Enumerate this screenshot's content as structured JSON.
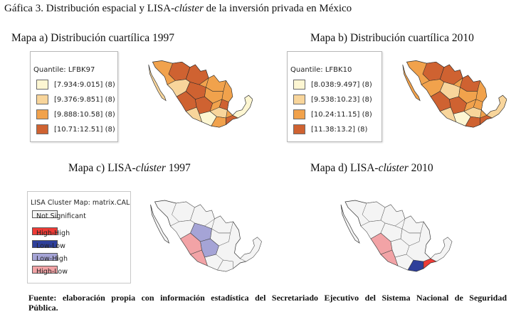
{
  "figure": {
    "title_prefix": "Gáfica 3. Distribución espacial y LISA-",
    "title_italic": "clúster",
    "title_suffix": " de la inversión privada en México"
  },
  "captions": {
    "a": "Mapa a) Distribución cuartílica 1997",
    "b": "Mapa b) Distribución cuartílica 2010",
    "c_prefix": "Mapa c) LISA-",
    "c_italic": "clúster",
    "c_suffix": " 1997",
    "d_prefix": "Mapa d) LISA-",
    "d_italic": "clúster",
    "d_suffix": " 2010"
  },
  "legend_1997": {
    "title": "Quantile: LFBK97",
    "items": [
      {
        "label": "[7.934:9.015] (8)",
        "color": "#fdf6d2"
      },
      {
        "label": "[9.376:9.851] (8)",
        "color": "#f8d59b"
      },
      {
        "label": "[9.888:10.58] (8)",
        "color": "#f1a24c"
      },
      {
        "label": "[10.71:12.51] (8)",
        "color": "#cf6231"
      }
    ]
  },
  "legend_2010": {
    "title": "Quantile: LFBK10",
    "items": [
      {
        "label": "[8.038:9.497] (8)",
        "color": "#fdf6d2"
      },
      {
        "label": "[9.538:10.23] (8)",
        "color": "#f8d59b"
      },
      {
        "label": "[10.24:11.15] (8)",
        "color": "#f1a24c"
      },
      {
        "label": "[11.38:13.2] (8)",
        "color": "#cf6231"
      }
    ]
  },
  "lisa_legend": {
    "title": "LISA Cluster Map: matrix.CAL",
    "items": [
      {
        "label": "Not Significant",
        "color": "#f4f4f4"
      },
      {
        "label": "High-High",
        "color": "#ee3b36"
      },
      {
        "label": "Low-Low",
        "color": "#2e3f9a"
      },
      {
        "label": "Low-High",
        "color": "#a5a4d6"
      },
      {
        "label": "High-Low",
        "color": "#f2a3a6"
      }
    ]
  },
  "source": {
    "line1": "Fuente: elaboración propia con información estadística del Secretariado Ejecutivo del Sistema Nacional de Seguridad",
    "line2": "Pública."
  }
}
